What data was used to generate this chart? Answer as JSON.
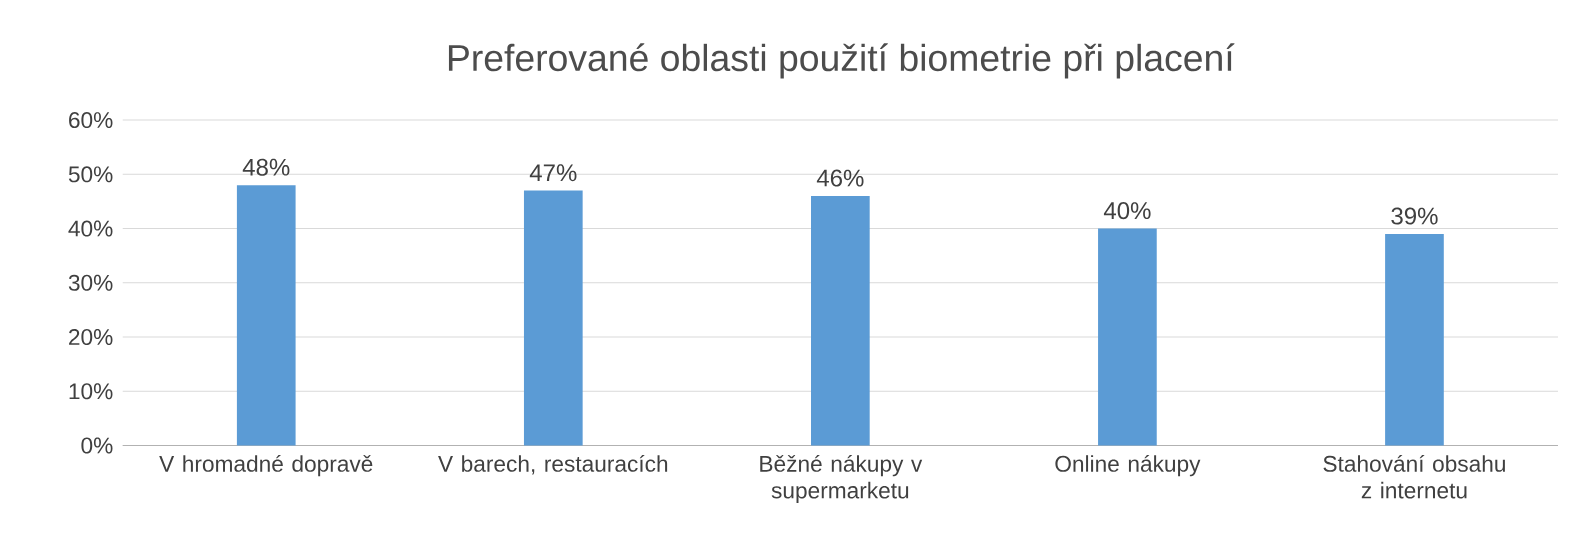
{
  "chart_data": {
    "type": "bar",
    "title": "Preferované oblasti použití biometrie při placení",
    "categories": [
      "V hromadné dopravě",
      "V barech, restauracích",
      "Běžné nákupy v supermarketu",
      "Online nákupy",
      "Stahování obsahu z internetu"
    ],
    "values": [
      48,
      47,
      46,
      40,
      39
    ],
    "value_labels": [
      "48%",
      "47%",
      "46%",
      "40%",
      "39%"
    ],
    "color": "#5b9bd5",
    "ylim": [
      0,
      60
    ],
    "yticks": [
      {
        "value": 0,
        "label": "0%"
      },
      {
        "value": 10,
        "label": "10%"
      },
      {
        "value": 20,
        "label": "20%"
      },
      {
        "value": 30,
        "label": "30%"
      },
      {
        "value": 40,
        "label": "40%"
      },
      {
        "value": 50,
        "label": "50%"
      },
      {
        "value": 60,
        "label": "60%"
      }
    ],
    "grid": "y"
  }
}
